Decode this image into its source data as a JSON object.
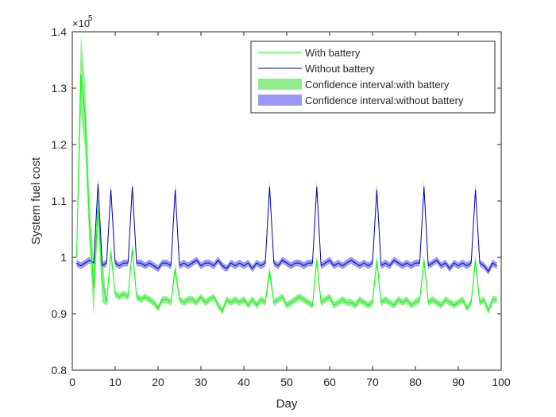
{
  "chart_data": {
    "type": "line",
    "xlabel": "Day",
    "ylabel": "System fuel cost",
    "y_multiplier_label": "×10",
    "y_multiplier_exponent": "5",
    "xlim": [
      0,
      100
    ],
    "ylim": [
      0.8,
      1.4
    ],
    "x_ticks": [
      "0",
      "10",
      "20",
      "30",
      "40",
      "50",
      "60",
      "70",
      "80",
      "90",
      "100"
    ],
    "y_ticks": [
      "0.8",
      "0.9",
      "1",
      "1.1",
      "1.2",
      "1.3",
      "1.4"
    ],
    "grid": false,
    "legend_position": "top-right",
    "colors": {
      "with_battery": "#00ff00",
      "without_battery": "#0000b4",
      "ci_with_battery": "#90ee90",
      "ci_without_battery": "#9999f5"
    },
    "legend": [
      {
        "label": "With battery",
        "kind": "line",
        "series": "with"
      },
      {
        "label": "Without battery",
        "kind": "line",
        "series": "without"
      },
      {
        "label": "Confidence interval:with battery",
        "kind": "band",
        "series": "ci_with"
      },
      {
        "label": "Confidence interval:without battery",
        "kind": "band",
        "series": "ci_without"
      }
    ],
    "x": [
      1,
      2,
      3,
      4,
      5,
      6,
      7,
      8,
      9,
      10,
      11,
      12,
      13,
      14,
      15,
      16,
      17,
      18,
      19,
      20,
      21,
      22,
      23,
      24,
      25,
      26,
      27,
      28,
      29,
      30,
      31,
      32,
      33,
      34,
      35,
      36,
      37,
      38,
      39,
      40,
      41,
      42,
      43,
      44,
      45,
      46,
      47,
      48,
      49,
      50,
      51,
      52,
      53,
      54,
      55,
      56,
      57,
      58,
      59,
      60,
      61,
      62,
      63,
      64,
      65,
      66,
      67,
      68,
      69,
      70,
      71,
      72,
      73,
      74,
      75,
      76,
      77,
      78,
      79,
      80,
      81,
      82,
      83,
      84,
      85,
      86,
      87,
      88,
      89,
      90,
      91,
      92,
      93,
      94,
      95,
      96,
      97,
      98,
      99
    ],
    "series": [
      {
        "name": "With battery",
        "values": [
          1.0,
          1.325,
          1.25,
          1.06,
          0.945,
          1.085,
          0.96,
          0.92,
          1.01,
          0.935,
          0.93,
          0.935,
          0.93,
          1.015,
          0.93,
          0.925,
          0.93,
          0.925,
          0.92,
          0.91,
          0.925,
          0.925,
          0.92,
          0.98,
          0.925,
          0.92,
          0.925,
          0.925,
          0.92,
          0.93,
          0.92,
          0.925,
          0.93,
          0.915,
          0.905,
          0.925,
          0.92,
          0.925,
          0.92,
          0.925,
          0.915,
          0.925,
          0.915,
          0.925,
          0.92,
          0.975,
          0.92,
          0.925,
          0.93,
          0.915,
          0.92,
          0.925,
          0.93,
          0.925,
          0.92,
          0.915,
          0.995,
          0.92,
          0.925,
          0.93,
          0.915,
          0.92,
          0.925,
          0.92,
          0.92,
          0.915,
          0.925,
          0.92,
          0.915,
          0.92,
          0.995,
          0.92,
          0.925,
          0.92,
          0.915,
          0.925,
          0.92,
          0.925,
          0.915,
          0.92,
          0.925,
          0.995,
          0.92,
          0.925,
          0.92,
          0.915,
          0.925,
          0.92,
          0.915,
          0.92,
          0.925,
          0.91,
          0.92,
          0.995,
          0.92,
          0.925,
          0.905,
          0.925,
          0.925
        ]
      },
      {
        "name": "Without battery",
        "values": [
          0.99,
          0.985,
          0.99,
          0.995,
          0.99,
          1.13,
          0.985,
          0.99,
          1.12,
          0.99,
          0.985,
          0.99,
          0.99,
          1.125,
          0.99,
          0.99,
          0.985,
          0.99,
          0.985,
          0.98,
          0.99,
          0.99,
          0.985,
          1.12,
          0.985,
          0.99,
          0.985,
          0.99,
          0.995,
          0.985,
          0.99,
          0.99,
          0.985,
          0.995,
          0.985,
          0.98,
          0.99,
          0.985,
          0.99,
          0.985,
          0.99,
          0.98,
          0.99,
          0.985,
          0.99,
          1.125,
          0.99,
          0.985,
          0.995,
          0.99,
          0.985,
          0.99,
          0.99,
          0.985,
          0.99,
          0.99,
          1.125,
          0.985,
          0.99,
          0.995,
          0.985,
          0.99,
          0.985,
          0.99,
          0.995,
          0.99,
          0.985,
          0.99,
          0.985,
          0.99,
          1.12,
          0.985,
          0.99,
          0.985,
          0.995,
          0.99,
          0.985,
          0.99,
          0.985,
          0.99,
          0.99,
          1.125,
          0.985,
          0.99,
          0.995,
          0.985,
          0.99,
          0.98,
          0.99,
          0.985,
          0.99,
          0.985,
          0.99,
          1.12,
          0.99,
          0.985,
          0.975,
          0.99,
          0.985
        ]
      }
    ],
    "ci_halfwidth": {
      "with_battery": 0.006,
      "without_battery": 0.006
    },
    "ci_halfwidth_early": {
      "days": [
        1,
        2,
        3,
        4,
        5,
        6,
        7
      ],
      "with_battery": [
        0.01,
        0.07,
        0.06,
        0.04,
        0.05,
        0.025,
        0.04
      ]
    }
  }
}
